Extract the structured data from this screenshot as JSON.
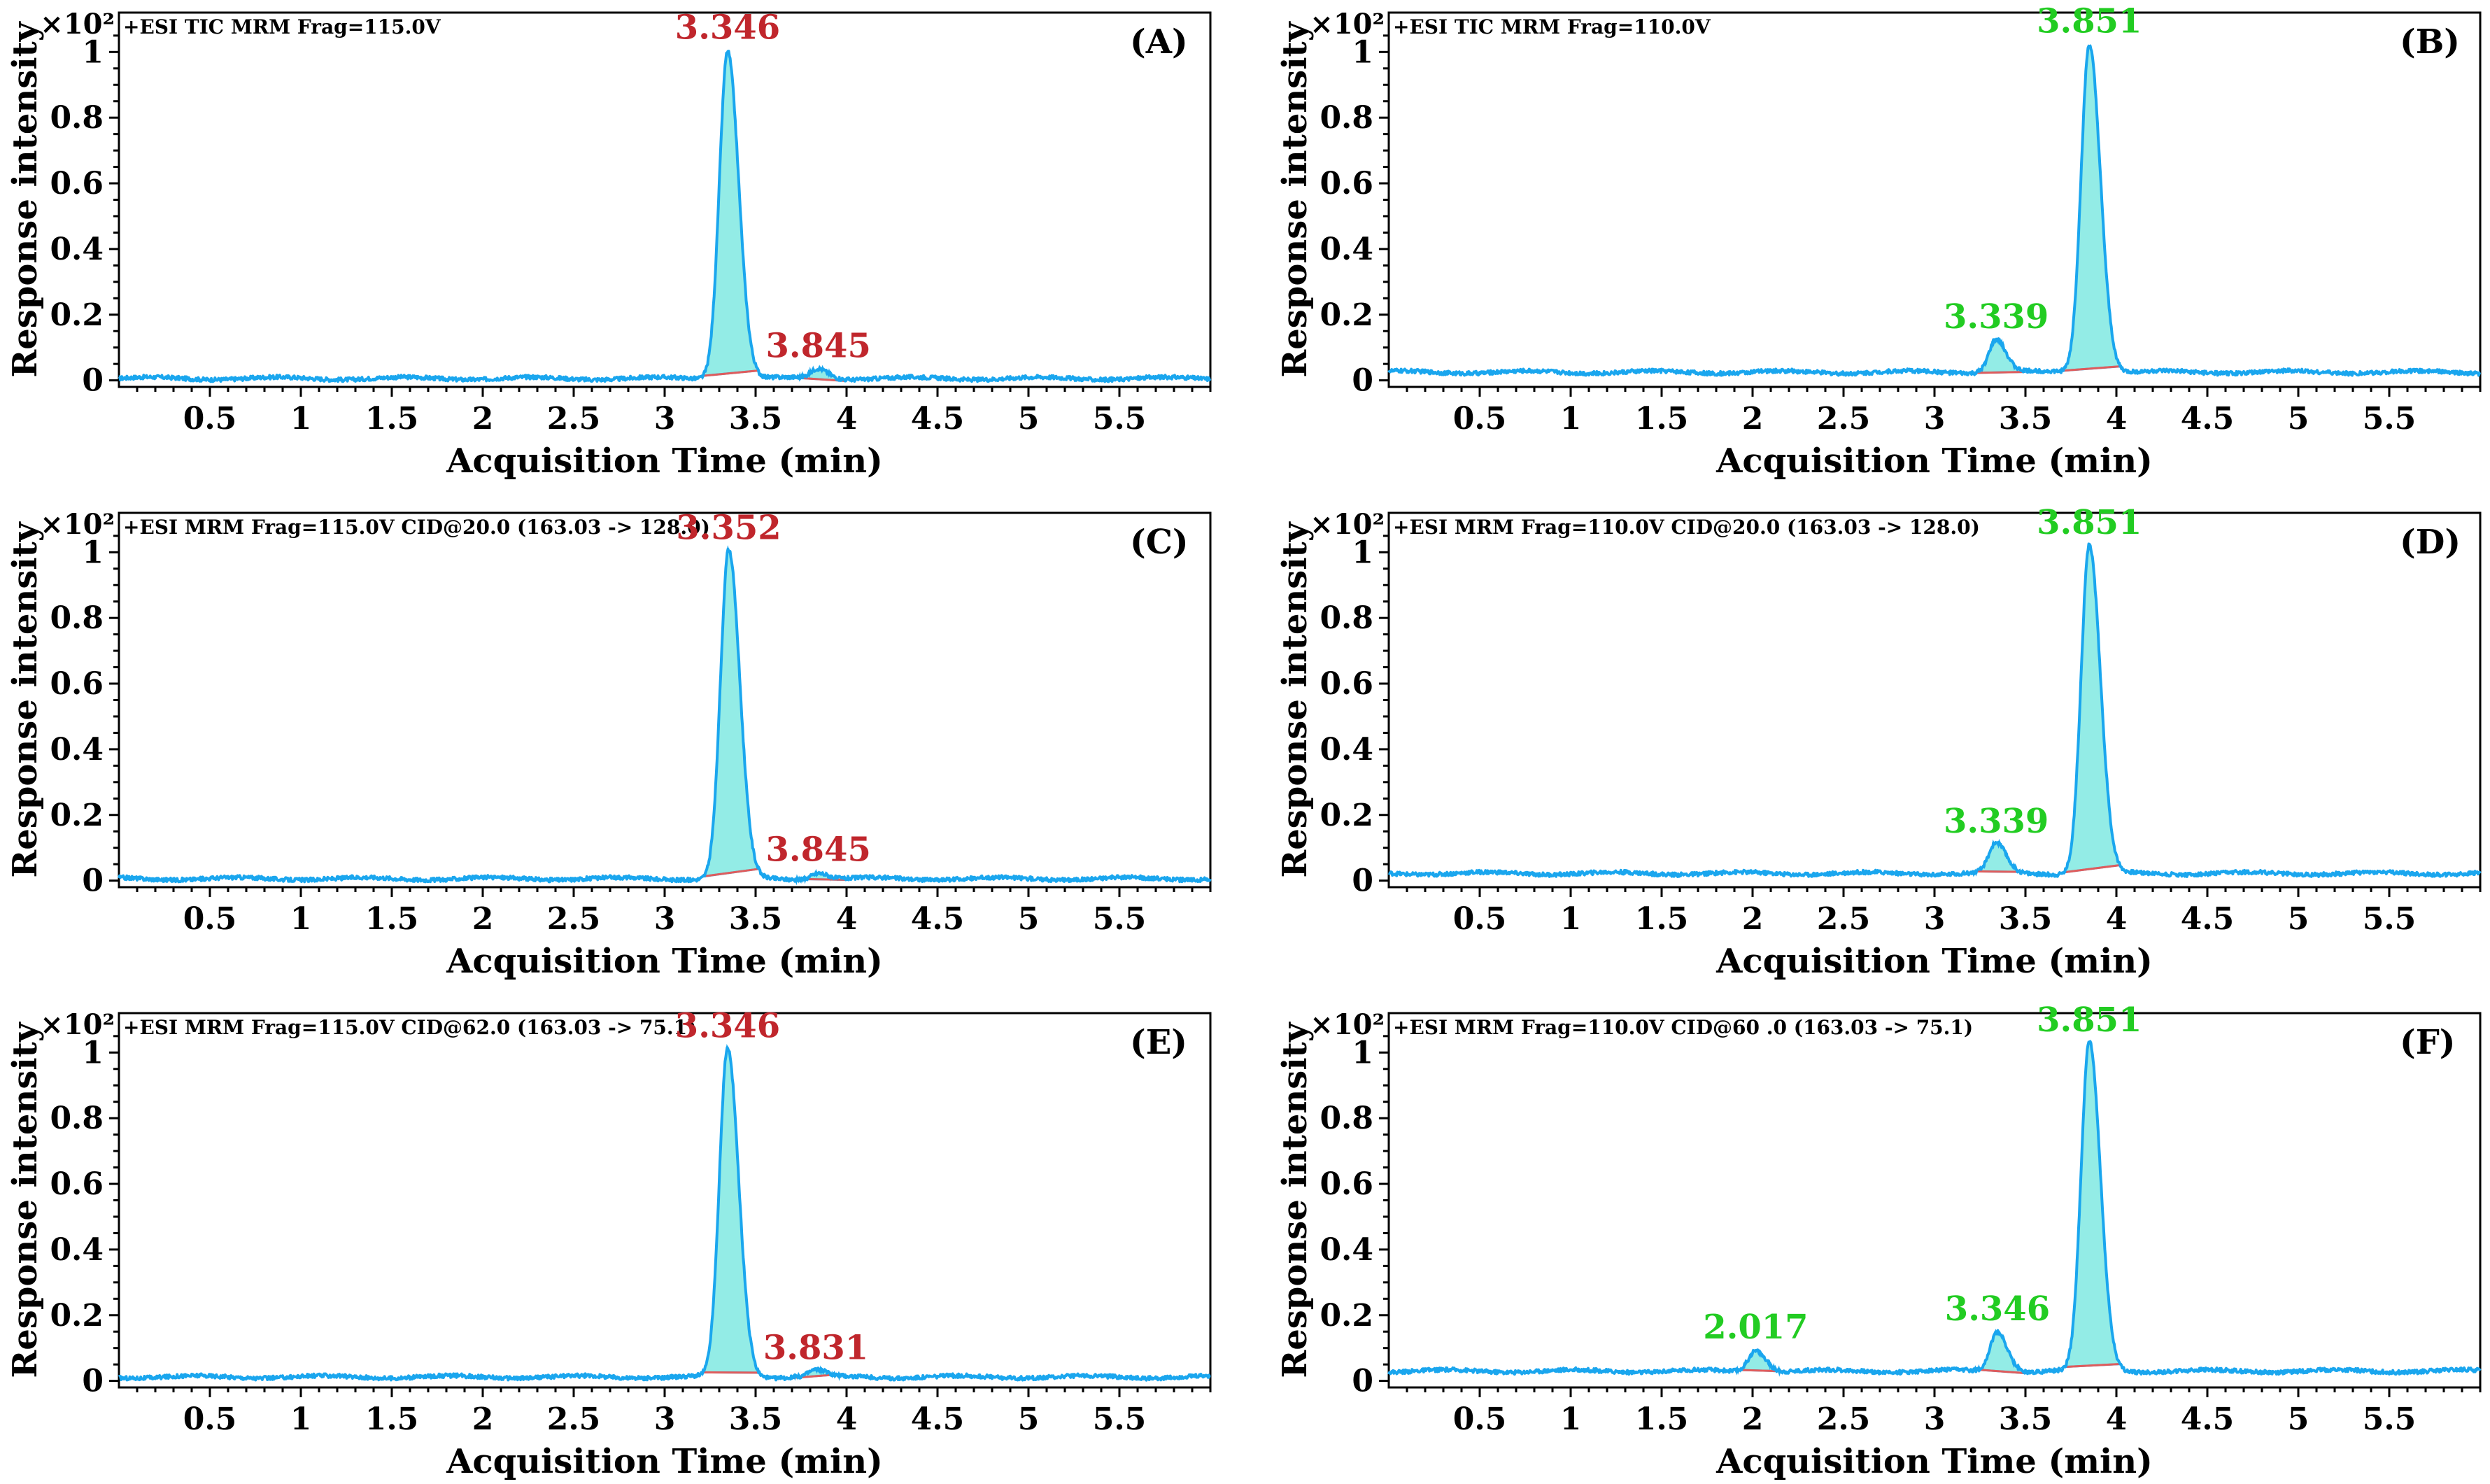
{
  "colors": {
    "trace": "#1aa6ee",
    "fill": "#93ece6",
    "baseline": "#e05c5c",
    "label_red": "#c0262c",
    "label_green": "#22cc22"
  },
  "chart_data": [
    {
      "type": "line",
      "panel_label": "(A)",
      "header": "+ESI TIC MRM Frag=115.0V",
      "y_scale_label": "×10²",
      "xlabel": "Acquisition Time (min)",
      "ylabel": "Response intensity",
      "xlim": [
        0,
        6
      ],
      "ylim": [
        -0.02,
        1.12
      ],
      "x_ticks": [
        "0.5",
        "1",
        "1.5",
        "2",
        "2.5",
        "3",
        "3.5",
        "4",
        "4.5",
        "5",
        "5.5"
      ],
      "y_ticks": [
        "0",
        "0.2",
        "0.4",
        "0.6",
        "0.8",
        "1"
      ],
      "label_color": "red",
      "baseline_level": 0.006,
      "peaks": [
        {
          "rt": 3.346,
          "height": 1.0,
          "label": "3.346"
        },
        {
          "rt": 3.845,
          "height": 0.03,
          "label": "3.845"
        }
      ]
    },
    {
      "type": "line",
      "panel_label": "(B)",
      "header": "+ESI TIC MRM Frag=110.0V",
      "y_scale_label": "×10²",
      "xlabel": "Acquisition Time (min)",
      "ylabel": "Response intensity",
      "xlim": [
        0,
        6
      ],
      "ylim": [
        -0.02,
        1.12
      ],
      "x_ticks": [
        "0.5",
        "1",
        "1.5",
        "2",
        "2.5",
        "3",
        "3.5",
        "4",
        "4.5",
        "5",
        "5.5"
      ],
      "y_ticks": [
        "0",
        "0.2",
        "0.4",
        "0.6",
        "0.8",
        "1"
      ],
      "label_color": "green",
      "baseline_level": 0.025,
      "peaks": [
        {
          "rt": 3.339,
          "height": 0.1,
          "label": "3.339"
        },
        {
          "rt": 3.851,
          "height": 1.0,
          "label": "3.851"
        }
      ]
    },
    {
      "type": "line",
      "panel_label": "(C)",
      "header": "+ESI MRM Frag=115.0V CID@20.0 (163.03 -> 128.0)",
      "y_scale_label": "×10²",
      "xlabel": "Acquisition Time (min)",
      "ylabel": "Response intensity",
      "xlim": [
        0,
        6
      ],
      "ylim": [
        -0.02,
        1.12
      ],
      "x_ticks": [
        "0.5",
        "1",
        "1.5",
        "2",
        "2.5",
        "3",
        "3.5",
        "4",
        "4.5",
        "5",
        "5.5"
      ],
      "y_ticks": [
        "0",
        "0.2",
        "0.4",
        "0.6",
        "0.8",
        "1"
      ],
      "label_color": "red",
      "baseline_level": 0.006,
      "peaks": [
        {
          "rt": 3.352,
          "height": 1.0,
          "label": "3.352"
        },
        {
          "rt": 3.845,
          "height": 0.02,
          "label": "3.845"
        }
      ]
    },
    {
      "type": "line",
      "panel_label": "(D)",
      "header": "+ESI MRM Frag=110.0V CID@20.0 (163.03 -> 128.0)",
      "y_scale_label": "×10²",
      "xlabel": "Acquisition Time (min)",
      "ylabel": "Response intensity",
      "xlim": [
        0,
        6
      ],
      "ylim": [
        -0.02,
        1.12
      ],
      "x_ticks": [
        "0.5",
        "1",
        "1.5",
        "2",
        "2.5",
        "3",
        "3.5",
        "4",
        "4.5",
        "5",
        "5.5"
      ],
      "y_ticks": [
        "0",
        "0.2",
        "0.4",
        "0.6",
        "0.8",
        "1"
      ],
      "label_color": "green",
      "baseline_level": 0.022,
      "peaks": [
        {
          "rt": 3.339,
          "height": 0.09,
          "label": "3.339"
        },
        {
          "rt": 3.851,
          "height": 1.0,
          "label": "3.851"
        }
      ]
    },
    {
      "type": "line",
      "panel_label": "(E)",
      "header": "+ESI MRM Frag=115.0V CID@62.0 (163.03 -> 75.1)",
      "y_scale_label": "×10²",
      "xlabel": "Acquisition Time (min)",
      "ylabel": "Response intensity",
      "xlim": [
        0,
        6
      ],
      "ylim": [
        -0.02,
        1.12
      ],
      "x_ticks": [
        "0.5",
        "1",
        "1.5",
        "2",
        "2.5",
        "3",
        "3.5",
        "4",
        "4.5",
        "5",
        "5.5"
      ],
      "y_ticks": [
        "0",
        "0.2",
        "0.4",
        "0.6",
        "0.8",
        "1"
      ],
      "label_color": "red",
      "baseline_level": 0.012,
      "peaks": [
        {
          "rt": 3.346,
          "height": 1.0,
          "label": "3.346"
        },
        {
          "rt": 3.831,
          "height": 0.02,
          "label": "3.831"
        }
      ]
    },
    {
      "type": "line",
      "panel_label": "(F)",
      "header": "+ESI MRM Frag=110.0V CID@60  .0 (163.03 -> 75.1)",
      "y_scale_label": "×10²",
      "xlabel": "Acquisition Time (min)",
      "ylabel": "Response intensity",
      "xlim": [
        0,
        6
      ],
      "ylim": [
        -0.02,
        1.12
      ],
      "x_ticks": [
        "0.5",
        "1",
        "1.5",
        "2",
        "2.5",
        "3",
        "3.5",
        "4",
        "4.5",
        "5",
        "5.5"
      ],
      "y_ticks": [
        "0",
        "0.2",
        "0.4",
        "0.6",
        "0.8",
        "1"
      ],
      "label_color": "green",
      "baseline_level": 0.03,
      "peaks": [
        {
          "rt": 2.017,
          "height": 0.065,
          "label": "2.017"
        },
        {
          "rt": 3.346,
          "height": 0.12,
          "label": "3.346"
        },
        {
          "rt": 3.851,
          "height": 1.0,
          "label": "3.851"
        }
      ]
    }
  ]
}
